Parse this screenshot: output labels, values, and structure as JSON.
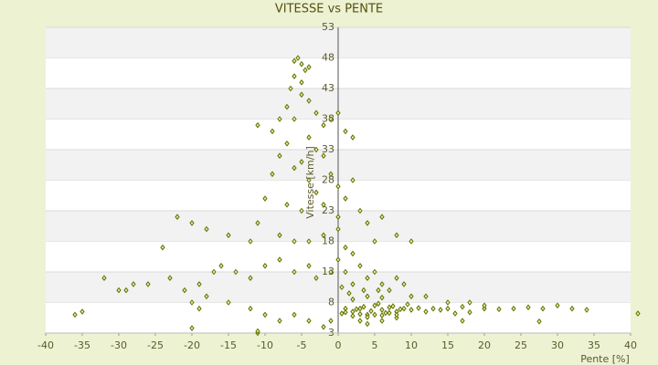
{
  "chart_data": {
    "type": "scatter",
    "title": "VITESSE vs PENTE",
    "x_label": "Pente [%]",
    "y_label": "Vitesse [km/h]",
    "xlim": [
      -40,
      40
    ],
    "xticks": [
      -40,
      -35,
      -30,
      -25,
      -20,
      -15,
      -10,
      -5,
      0,
      5,
      10,
      15,
      20,
      25,
      30,
      35,
      40
    ],
    "ylim": [
      3,
      53
    ],
    "yticks": [
      3,
      8,
      13,
      18,
      23,
      28,
      33,
      38,
      43,
      48,
      53
    ],
    "color": "#5f6e00",
    "x": [
      -6,
      -5.5,
      -5,
      -4.5,
      -6,
      -5,
      -4,
      -6.5,
      -5,
      -4,
      -7,
      -3,
      -8,
      -6,
      -2,
      -1,
      0,
      -11,
      -9,
      -4,
      -7,
      -3,
      -8,
      -5,
      -2,
      1,
      2,
      -6,
      -9,
      -4,
      -1,
      0,
      -3,
      2,
      1,
      -10,
      -7,
      -5,
      -2,
      0,
      3,
      4,
      6,
      -11,
      -12,
      -15,
      -18,
      -20,
      -22,
      -24,
      -8,
      -6,
      -4,
      -2,
      0,
      1,
      2,
      5,
      8,
      10,
      -26,
      -28,
      -30,
      -32,
      -29,
      -23,
      -21,
      -19,
      -17,
      -16,
      -14,
      -12,
      -10,
      -8,
      -6,
      -4,
      -3,
      -1,
      0,
      1,
      2,
      3,
      4,
      5,
      6,
      7,
      8,
      9,
      10,
      12,
      15,
      18,
      20,
      -36,
      -35,
      -20,
      -18,
      -15,
      -12,
      -10,
      -8,
      -6,
      -4,
      -2,
      -1,
      -11,
      -19,
      1,
      2,
      3,
      4,
      5,
      6,
      7,
      8,
      9,
      10,
      11,
      12,
      13,
      14,
      15,
      16,
      17,
      18,
      20,
      22,
      24,
      26,
      28,
      30,
      32,
      34,
      41,
      27.5,
      17,
      3,
      4,
      6,
      8,
      2,
      4,
      6,
      1.5,
      0.5,
      3.5,
      5.5,
      -20,
      -11,
      0.5,
      1,
      2.5,
      3.5,
      4.5,
      5.5,
      6.5,
      7.5,
      8.5,
      9.5,
      2,
      3,
      4,
      5,
      6,
      7,
      8
    ],
    "y": [
      47.5,
      48,
      47,
      46,
      45,
      44,
      46.5,
      43,
      42,
      41,
      40,
      39,
      38,
      38,
      37,
      38,
      39,
      37,
      36,
      35,
      34,
      33,
      32,
      31,
      32,
      36,
      35,
      30,
      29,
      28,
      29,
      27,
      26,
      28,
      25,
      25,
      24,
      23,
      24,
      22,
      23,
      21,
      22,
      21,
      18,
      19,
      20,
      21,
      22,
      17,
      19,
      18,
      18,
      19,
      20,
      17,
      16,
      18,
      19,
      18,
      11,
      11,
      10,
      12,
      10,
      12,
      10,
      11,
      13,
      14,
      13,
      12,
      14,
      15,
      13,
      14,
      12,
      13,
      15,
      13,
      11,
      14,
      12,
      13,
      11,
      10,
      12,
      11,
      9,
      9,
      8,
      8,
      7,
      6,
      6.5,
      8,
      9,
      8,
      7,
      6,
      5,
      6,
      5,
      4,
      5,
      3,
      7,
      7,
      6.5,
      7,
      6,
      7.5,
      6.8,
      7.2,
      6.5,
      7,
      6.8,
      7.1,
      6.5,
      7,
      6.8,
      7,
      6.2,
      7.3,
      6.4,
      7.5,
      6.9,
      7,
      7.2,
      7,
      7.5,
      7,
      6.8,
      6.2,
      4.9,
      5,
      5,
      4.5,
      5,
      5.5,
      8.5,
      9,
      8.8,
      9.5,
      10.5,
      10,
      10,
      3.8,
      3.3,
      6.2,
      6.4,
      6.9,
      7.3,
      6.6,
      7.8,
      6.3,
      7.4,
      6.9,
      7.7,
      5.8,
      6.1,
      5.6,
      6.0,
      5.9,
      6.3,
      6.0
    ]
  }
}
